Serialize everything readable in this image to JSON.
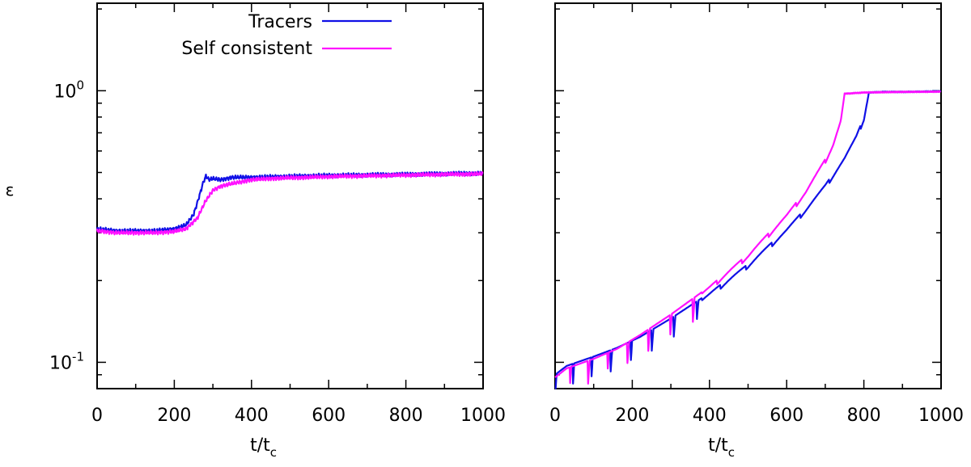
{
  "colors": {
    "tracers": "#1010e6",
    "self_consistent": "#ff10ff",
    "axes": "#000000",
    "background": "#ffffff"
  },
  "legend": {
    "entries": [
      {
        "label": "Tracers",
        "color": "#1010e6"
      },
      {
        "label": "Self consistent",
        "color": "#ff10ff"
      }
    ],
    "placement": "top-center of left panel"
  },
  "chart_data": [
    {
      "type": "line",
      "panel": "left",
      "xlabel_main": "t/t",
      "xlabel_sub": "c",
      "ylabel": "ε",
      "xlim": [
        0,
        1000
      ],
      "ylim": [
        0.08,
        2.1
      ],
      "yscale": "log",
      "xticks": [
        "0",
        "200",
        "400",
        "600",
        "800",
        "1000"
      ],
      "yticks": [
        {
          "value": 1,
          "base": "10",
          "exp": "0"
        },
        {
          "value": 0.1,
          "base": "10",
          "exp": "-1"
        }
      ],
      "grid": false,
      "series": [
        {
          "name": "Tracers",
          "color": "#1010e6",
          "x": [
            0,
            50,
            100,
            150,
            200,
            230,
            250,
            265,
            275,
            282,
            290,
            300,
            320,
            350,
            400,
            450,
            500,
            550,
            600,
            700,
            800,
            900,
            1000
          ],
          "y": [
            0.31,
            0.305,
            0.305,
            0.305,
            0.31,
            0.32,
            0.35,
            0.41,
            0.46,
            0.485,
            0.47,
            0.475,
            0.47,
            0.48,
            0.48,
            0.482,
            0.484,
            0.486,
            0.488,
            0.49,
            0.492,
            0.495,
            0.497
          ]
        },
        {
          "name": "Self consistent",
          "color": "#ff10ff",
          "x": [
            0,
            50,
            100,
            150,
            200,
            230,
            260,
            280,
            300,
            320,
            350,
            400,
            450,
            500,
            550,
            600,
            700,
            800,
            900,
            1000
          ],
          "y": [
            0.305,
            0.3,
            0.3,
            0.3,
            0.303,
            0.31,
            0.34,
            0.39,
            0.43,
            0.445,
            0.455,
            0.47,
            0.475,
            0.478,
            0.48,
            0.483,
            0.486,
            0.489,
            0.492,
            0.494
          ]
        }
      ]
    },
    {
      "type": "line",
      "panel": "right",
      "xlabel_main": "t/t",
      "xlabel_sub": "c",
      "ylabel": "",
      "xlim": [
        0,
        1000
      ],
      "ylim": [
        0.08,
        2.1
      ],
      "yscale": "log",
      "xticks": [
        "0",
        "200",
        "400",
        "600",
        "800",
        "1000"
      ],
      "grid": false,
      "series": [
        {
          "name": "Tracers",
          "color": "#1010e6",
          "x": [
            0,
            30,
            100,
            160,
            220,
            300,
            400,
            500,
            600,
            650,
            700,
            750,
            780,
            800,
            812,
            850,
            900,
            1000
          ],
          "y": [
            0.09,
            0.097,
            0.105,
            0.113,
            0.124,
            0.145,
            0.18,
            0.23,
            0.31,
            0.37,
            0.45,
            0.57,
            0.68,
            0.8,
            0.985,
            0.99,
            0.99,
            0.995
          ]
        },
        {
          "name": "Self consistent",
          "color": "#ff10ff",
          "x": [
            0,
            30,
            100,
            160,
            220,
            300,
            400,
            500,
            600,
            650,
            700,
            720,
            740,
            750,
            800,
            900,
            1000
          ],
          "y": [
            0.088,
            0.095,
            0.103,
            0.112,
            0.126,
            0.15,
            0.19,
            0.25,
            0.35,
            0.43,
            0.56,
            0.64,
            0.78,
            0.975,
            0.985,
            0.99,
            0.992
          ]
        }
      ],
      "notes": "periodic oscillations with dips, left to script"
    }
  ]
}
